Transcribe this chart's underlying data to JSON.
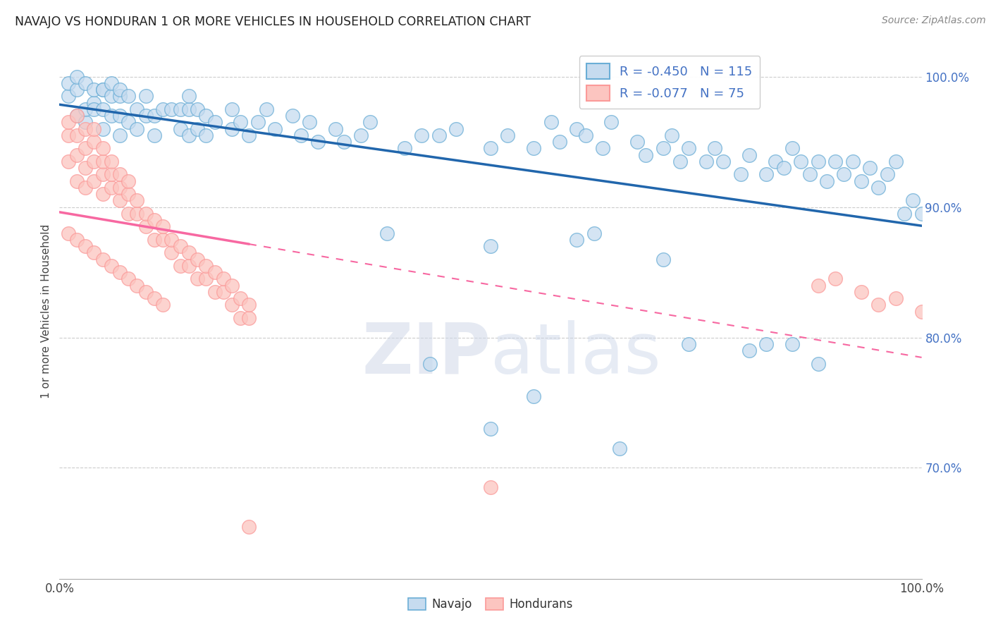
{
  "title": "NAVAJO VS HONDURAN 1 OR MORE VEHICLES IN HOUSEHOLD CORRELATION CHART",
  "source": "Source: ZipAtlas.com",
  "ylabel": "1 or more Vehicles in Household",
  "xlim": [
    0.0,
    1.0
  ],
  "ylim": [
    0.615,
    1.025
  ],
  "yticks": [
    0.7,
    0.8,
    0.9,
    1.0
  ],
  "ytick_labels": [
    "70.0%",
    "80.0%",
    "90.0%",
    "100.0%"
  ],
  "navajo_R": -0.45,
  "navajo_N": 115,
  "honduran_R": -0.077,
  "honduran_N": 75,
  "navajo_color_face": "#c6dbef",
  "navajo_color_edge": "#6baed6",
  "honduran_color_face": "#fcc5c0",
  "honduran_color_edge": "#fb9a99",
  "navajo_line_color": "#2166ac",
  "honduran_line_color": "#f768a1",
  "tick_color": "#4472c4",
  "background_color": "#ffffff",
  "grid_color": "#e0e0e0",
  "watermark": "ZIPatlas",
  "navajo_scatter": [
    [
      0.01,
      0.985
    ],
    [
      0.01,
      0.995
    ],
    [
      0.02,
      0.97
    ],
    [
      0.02,
      0.99
    ],
    [
      0.02,
      1.0
    ],
    [
      0.03,
      0.965
    ],
    [
      0.03,
      0.975
    ],
    [
      0.03,
      0.995
    ],
    [
      0.04,
      0.98
    ],
    [
      0.04,
      0.99
    ],
    [
      0.04,
      0.975
    ],
    [
      0.05,
      0.96
    ],
    [
      0.05,
      0.975
    ],
    [
      0.05,
      0.99
    ],
    [
      0.05,
      0.99
    ],
    [
      0.06,
      0.97
    ],
    [
      0.06,
      0.985
    ],
    [
      0.06,
      0.995
    ],
    [
      0.07,
      0.955
    ],
    [
      0.07,
      0.97
    ],
    [
      0.07,
      0.985
    ],
    [
      0.07,
      0.99
    ],
    [
      0.08,
      0.965
    ],
    [
      0.08,
      0.985
    ],
    [
      0.09,
      0.96
    ],
    [
      0.09,
      0.975
    ],
    [
      0.1,
      0.97
    ],
    [
      0.1,
      0.985
    ],
    [
      0.11,
      0.955
    ],
    [
      0.11,
      0.97
    ],
    [
      0.12,
      0.975
    ],
    [
      0.13,
      0.975
    ],
    [
      0.14,
      0.96
    ],
    [
      0.14,
      0.975
    ],
    [
      0.15,
      0.955
    ],
    [
      0.15,
      0.975
    ],
    [
      0.15,
      0.985
    ],
    [
      0.16,
      0.96
    ],
    [
      0.16,
      0.975
    ],
    [
      0.17,
      0.955
    ],
    [
      0.17,
      0.97
    ],
    [
      0.18,
      0.965
    ],
    [
      0.2,
      0.96
    ],
    [
      0.2,
      0.975
    ],
    [
      0.21,
      0.965
    ],
    [
      0.22,
      0.955
    ],
    [
      0.23,
      0.965
    ],
    [
      0.24,
      0.975
    ],
    [
      0.25,
      0.96
    ],
    [
      0.27,
      0.97
    ],
    [
      0.28,
      0.955
    ],
    [
      0.29,
      0.965
    ],
    [
      0.3,
      0.95
    ],
    [
      0.32,
      0.96
    ],
    [
      0.33,
      0.95
    ],
    [
      0.35,
      0.955
    ],
    [
      0.36,
      0.965
    ],
    [
      0.4,
      0.945
    ],
    [
      0.42,
      0.955
    ],
    [
      0.44,
      0.955
    ],
    [
      0.46,
      0.96
    ],
    [
      0.5,
      0.945
    ],
    [
      0.52,
      0.955
    ],
    [
      0.55,
      0.945
    ],
    [
      0.57,
      0.965
    ],
    [
      0.58,
      0.95
    ],
    [
      0.6,
      0.96
    ],
    [
      0.61,
      0.955
    ],
    [
      0.63,
      0.945
    ],
    [
      0.64,
      0.965
    ],
    [
      0.67,
      0.95
    ],
    [
      0.68,
      0.94
    ],
    [
      0.7,
      0.945
    ],
    [
      0.71,
      0.955
    ],
    [
      0.72,
      0.935
    ],
    [
      0.73,
      0.945
    ],
    [
      0.75,
      0.935
    ],
    [
      0.76,
      0.945
    ],
    [
      0.77,
      0.935
    ],
    [
      0.79,
      0.925
    ],
    [
      0.8,
      0.94
    ],
    [
      0.82,
      0.925
    ],
    [
      0.83,
      0.935
    ],
    [
      0.84,
      0.93
    ],
    [
      0.85,
      0.945
    ],
    [
      0.86,
      0.935
    ],
    [
      0.87,
      0.925
    ],
    [
      0.88,
      0.935
    ],
    [
      0.89,
      0.92
    ],
    [
      0.9,
      0.935
    ],
    [
      0.91,
      0.925
    ],
    [
      0.92,
      0.935
    ],
    [
      0.93,
      0.92
    ],
    [
      0.94,
      0.93
    ],
    [
      0.95,
      0.915
    ],
    [
      0.96,
      0.925
    ],
    [
      0.97,
      0.935
    ],
    [
      0.98,
      0.895
    ],
    [
      0.99,
      0.905
    ],
    [
      1.0,
      0.895
    ],
    [
      0.43,
      0.78
    ],
    [
      0.55,
      0.755
    ],
    [
      0.5,
      0.73
    ],
    [
      0.65,
      0.715
    ],
    [
      0.73,
      0.795
    ],
    [
      0.82,
      0.795
    ],
    [
      0.38,
      0.88
    ],
    [
      0.5,
      0.87
    ],
    [
      0.6,
      0.875
    ],
    [
      0.62,
      0.88
    ],
    [
      0.7,
      0.86
    ],
    [
      0.8,
      0.79
    ],
    [
      0.85,
      0.795
    ],
    [
      0.88,
      0.78
    ]
  ],
  "honduran_scatter": [
    [
      0.01,
      0.935
    ],
    [
      0.01,
      0.955
    ],
    [
      0.01,
      0.965
    ],
    [
      0.02,
      0.92
    ],
    [
      0.02,
      0.94
    ],
    [
      0.02,
      0.955
    ],
    [
      0.02,
      0.97
    ],
    [
      0.03,
      0.915
    ],
    [
      0.03,
      0.93
    ],
    [
      0.03,
      0.945
    ],
    [
      0.03,
      0.96
    ],
    [
      0.04,
      0.92
    ],
    [
      0.04,
      0.935
    ],
    [
      0.04,
      0.95
    ],
    [
      0.04,
      0.96
    ],
    [
      0.05,
      0.91
    ],
    [
      0.05,
      0.925
    ],
    [
      0.05,
      0.935
    ],
    [
      0.05,
      0.945
    ],
    [
      0.06,
      0.915
    ],
    [
      0.06,
      0.925
    ],
    [
      0.06,
      0.935
    ],
    [
      0.07,
      0.905
    ],
    [
      0.07,
      0.915
    ],
    [
      0.07,
      0.925
    ],
    [
      0.08,
      0.895
    ],
    [
      0.08,
      0.91
    ],
    [
      0.08,
      0.92
    ],
    [
      0.09,
      0.895
    ],
    [
      0.09,
      0.905
    ],
    [
      0.1,
      0.885
    ],
    [
      0.1,
      0.895
    ],
    [
      0.11,
      0.875
    ],
    [
      0.11,
      0.89
    ],
    [
      0.12,
      0.875
    ],
    [
      0.12,
      0.885
    ],
    [
      0.13,
      0.865
    ],
    [
      0.13,
      0.875
    ],
    [
      0.14,
      0.855
    ],
    [
      0.14,
      0.87
    ],
    [
      0.15,
      0.855
    ],
    [
      0.15,
      0.865
    ],
    [
      0.16,
      0.845
    ],
    [
      0.16,
      0.86
    ],
    [
      0.17,
      0.845
    ],
    [
      0.17,
      0.855
    ],
    [
      0.18,
      0.835
    ],
    [
      0.18,
      0.85
    ],
    [
      0.19,
      0.835
    ],
    [
      0.19,
      0.845
    ],
    [
      0.2,
      0.825
    ],
    [
      0.2,
      0.84
    ],
    [
      0.21,
      0.815
    ],
    [
      0.21,
      0.83
    ],
    [
      0.22,
      0.815
    ],
    [
      0.22,
      0.825
    ],
    [
      0.01,
      0.88
    ],
    [
      0.02,
      0.875
    ],
    [
      0.03,
      0.87
    ],
    [
      0.04,
      0.865
    ],
    [
      0.05,
      0.86
    ],
    [
      0.06,
      0.855
    ],
    [
      0.07,
      0.85
    ],
    [
      0.08,
      0.845
    ],
    [
      0.09,
      0.84
    ],
    [
      0.1,
      0.835
    ],
    [
      0.11,
      0.83
    ],
    [
      0.12,
      0.825
    ],
    [
      0.5,
      0.685
    ],
    [
      0.22,
      0.655
    ],
    [
      0.88,
      0.84
    ],
    [
      0.9,
      0.845
    ],
    [
      0.93,
      0.835
    ],
    [
      0.95,
      0.825
    ],
    [
      0.97,
      0.83
    ],
    [
      1.0,
      0.82
    ]
  ]
}
